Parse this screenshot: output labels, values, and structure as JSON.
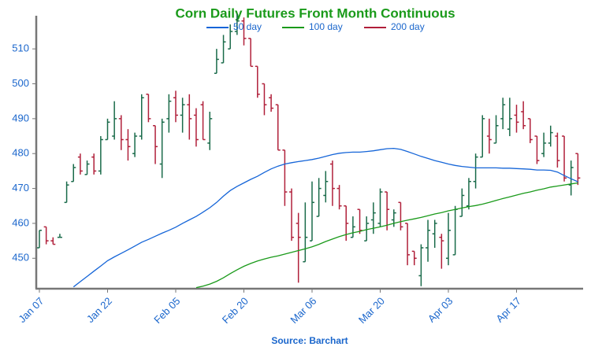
{
  "chart_data": {
    "type": "ohlc",
    "title": "Corn Daily Futures Front Month Continuous",
    "source": "Source: Barchart",
    "categories": [
      "Jan 07",
      null,
      null,
      null,
      null,
      null,
      null,
      null,
      null,
      null,
      "Jan 22",
      null,
      null,
      null,
      null,
      null,
      null,
      null,
      null,
      null,
      "Feb 05",
      null,
      null,
      null,
      null,
      null,
      null,
      null,
      null,
      null,
      "Feb 20",
      null,
      null,
      null,
      null,
      null,
      null,
      null,
      null,
      null,
      "Mar 06",
      null,
      null,
      null,
      null,
      null,
      null,
      null,
      null,
      null,
      "Mar 20",
      null,
      null,
      null,
      null,
      null,
      null,
      null,
      null,
      null,
      "Apr 03",
      null,
      null,
      null,
      null,
      null,
      null,
      null,
      null,
      null,
      "Apr 17",
      null,
      null,
      null,
      null,
      null,
      null,
      null,
      null,
      null
    ],
    "open": [
      453,
      459,
      455,
      456,
      466,
      472,
      479,
      474,
      479,
      475,
      484,
      485,
      490,
      484,
      480,
      485,
      497,
      488,
      477,
      490,
      496,
      491,
      494,
      491,
      494,
      483,
      503,
      506,
      510,
      515,
      518,
      513,
      505,
      500,
      496,
      494,
      481,
      469,
      460,
      449,
      455,
      462,
      468,
      477,
      470,
      465,
      456,
      464,
      455,
      461,
      460,
      469,
      461,
      466,
      460,
      452,
      445,
      453,
      457,
      456,
      450,
      451,
      462,
      465,
      472,
      479,
      485,
      483,
      490,
      487,
      491,
      492,
      490,
      485,
      480,
      483,
      485,
      485,
      471,
      480
    ],
    "high": [
      458,
      459,
      456,
      457,
      472,
      477,
      480,
      478,
      480,
      485,
      490,
      495,
      491,
      487,
      486,
      497,
      497,
      488,
      490,
      497,
      498,
      496,
      497,
      493,
      495,
      492,
      510,
      514,
      517,
      520,
      519,
      513,
      505,
      500,
      497,
      494,
      481,
      470,
      463,
      466,
      472,
      473,
      475,
      478,
      471,
      465,
      462,
      464,
      462,
      466,
      470,
      469,
      464,
      466,
      460,
      452,
      454,
      461,
      461,
      457,
      463,
      465,
      470,
      473,
      480,
      491,
      490,
      491,
      496,
      496,
      494,
      495,
      490,
      485,
      486,
      488,
      486,
      485,
      478,
      480
    ],
    "low": [
      453,
      454,
      454,
      456,
      466,
      472,
      474,
      474,
      474,
      474,
      484,
      484,
      481,
      478,
      479,
      484,
      489,
      477,
      473,
      486,
      489,
      486,
      484,
      482,
      484,
      481,
      503,
      506,
      510,
      514,
      511,
      505,
      496,
      491,
      492,
      481,
      465,
      455,
      443,
      449,
      455,
      462,
      466,
      465,
      464,
      455,
      456,
      457,
      455,
      457,
      459,
      458,
      459,
      458,
      448,
      448,
      442,
      449,
      453,
      447,
      448,
      451,
      462,
      464,
      470,
      479,
      480,
      483,
      487,
      485,
      486,
      487,
      483,
      477,
      479,
      482,
      476,
      472,
      468,
      471
    ],
    "close": [
      458,
      455,
      454,
      456,
      471,
      476,
      475,
      477,
      475,
      484,
      489,
      490,
      484,
      482,
      485,
      496,
      490,
      482,
      489,
      495,
      491,
      494,
      490,
      484,
      484,
      490,
      507,
      512,
      515,
      518,
      513,
      505,
      497,
      494,
      493,
      481,
      469,
      456,
      456,
      456,
      466,
      470,
      472,
      470,
      465,
      460,
      459,
      458,
      460,
      463,
      469,
      464,
      463,
      459,
      451,
      450,
      453,
      458,
      460,
      455,
      458,
      464,
      468,
      472,
      479,
      490,
      484,
      488,
      494,
      490,
      489,
      488,
      484,
      478,
      483,
      486,
      478,
      473,
      476,
      473
    ],
    "up_color": "#1a6b4a",
    "down_color": "#b0203a",
    "series": [
      {
        "name": "50 day",
        "color": "#1565d8",
        "values": [
          null,
          null,
          null,
          null,
          null,
          441.8,
          443.3,
          444.8,
          446.3,
          447.8,
          449.3,
          450.4,
          451.4,
          452.4,
          453.5,
          454.6,
          455.4,
          456.3,
          457.2,
          458.0,
          458.9,
          460.0,
          461.0,
          462.0,
          463.2,
          464.5,
          466.0,
          467.8,
          469.4,
          470.6,
          471.6,
          472.6,
          473.5,
          474.6,
          475.6,
          476.4,
          477.0,
          477.4,
          477.7,
          478.0,
          478.3,
          478.7,
          479.2,
          479.7,
          480.1,
          480.3,
          480.4,
          480.4,
          480.6,
          480.8,
          481.1,
          481.4,
          481.5,
          481.2,
          480.6,
          479.9,
          479.2,
          478.6,
          478.0,
          477.5,
          477.0,
          476.6,
          476.3,
          476.1,
          475.9,
          475.9,
          475.9,
          475.9,
          475.8,
          475.8,
          475.7,
          475.6,
          475.5,
          475.3,
          475.3,
          475.2,
          474.7,
          473.7,
          472.8,
          471.9
        ]
      },
      {
        "name": "100 day",
        "color": "#1a9a1a",
        "values": [
          null,
          null,
          null,
          null,
          null,
          null,
          null,
          null,
          null,
          null,
          null,
          null,
          null,
          null,
          null,
          null,
          null,
          null,
          null,
          null,
          null,
          null,
          null,
          441.6,
          442.0,
          442.6,
          443.4,
          444.4,
          445.6,
          446.7,
          447.7,
          448.5,
          449.2,
          449.8,
          450.3,
          450.7,
          451.2,
          451.7,
          452.2,
          452.7,
          453.3,
          454.0,
          454.8,
          455.5,
          456.2,
          456.8,
          457.3,
          457.7,
          458.2,
          458.6,
          459.0,
          459.5,
          460.0,
          460.5,
          460.9,
          461.3,
          461.7,
          462.2,
          462.7,
          463.1,
          463.6,
          464.0,
          464.4,
          464.8,
          465.1,
          465.5,
          466.0,
          466.6,
          467.1,
          467.6,
          468.1,
          468.6,
          469.0,
          469.5,
          469.9,
          470.4,
          470.7,
          471.0,
          471.3,
          471.6
        ]
      },
      {
        "name": "200 day",
        "color": "#b01e3a",
        "values": [
          null,
          null,
          null,
          null,
          null,
          null,
          null,
          null,
          null,
          null,
          null,
          null,
          null,
          null,
          null,
          null,
          null,
          null,
          null,
          null,
          null,
          null,
          null,
          null,
          null,
          null,
          null,
          null,
          null,
          null,
          null,
          null,
          null,
          null,
          null,
          null,
          null,
          null,
          null,
          null,
          null,
          null,
          null,
          null,
          null,
          null,
          null,
          null,
          null,
          null,
          null,
          null,
          null,
          null,
          null,
          null,
          null,
          null,
          null,
          null,
          null,
          null,
          null,
          null,
          null,
          null,
          null,
          null,
          null,
          null,
          null,
          null,
          null,
          null,
          null,
          null,
          null,
          null,
          null,
          null
        ]
      }
    ],
    "ylim": [
      441.5,
      519.5
    ],
    "yticks": [
      450,
      460,
      470,
      480,
      490,
      500,
      510
    ],
    "title_color": "#1a9a1a",
    "text_color": "#1a66cc"
  }
}
